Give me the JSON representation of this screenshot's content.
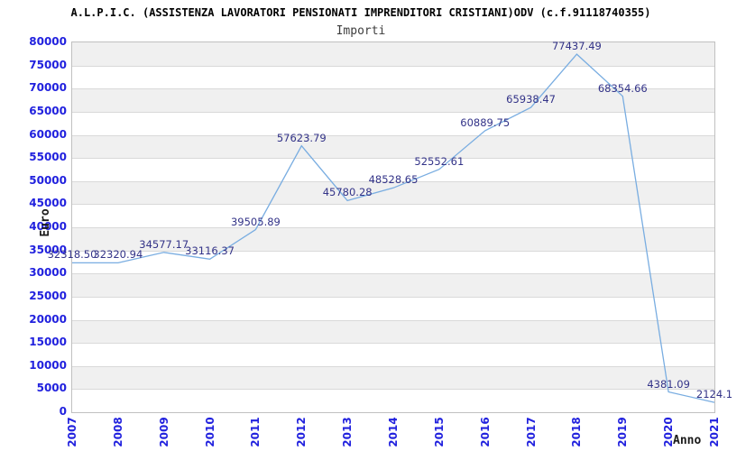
{
  "header": {
    "title": "A.L.P.I.C. (ASSISTENZA LAVORATORI PENSIONATI IMPRENDITORI CRISTIANI)ODV (c.f.91118740355)",
    "subtitle": "Importi"
  },
  "chart_data": {
    "type": "line",
    "title": "Importi",
    "xlabel": "Anno",
    "ylabel": "Euro",
    "categories": [
      "2007",
      "2008",
      "2009",
      "2010",
      "2011",
      "2012",
      "2013",
      "2014",
      "2015",
      "2016",
      "2017",
      "2018",
      "2019",
      "2020",
      "2021"
    ],
    "values": [
      32318.5,
      32320.94,
      34577.17,
      33116.37,
      39505.89,
      57623.79,
      45780.28,
      48528.65,
      52552.61,
      60889.75,
      65938.47,
      77437.49,
      68354.66,
      4381.09,
      2124.1
    ],
    "point_labels": [
      "32318.50",
      "32320.94",
      "34577.17",
      "33116.37",
      "39505.89",
      "57623.79",
      "45780.28",
      "48528.65",
      "52552.61",
      "60889.75",
      "65938.47",
      "77437.49",
      "68354.66",
      "4381.09",
      "2124.1"
    ],
    "ylim": [
      0,
      80000
    ],
    "ytick_step": 5000,
    "grid": true,
    "legend_position": "none",
    "note": "point label for 2021 is clipped at the right image edge",
    "colors": {
      "line": "#79ade1",
      "tick_labels": "#2121de",
      "point_labels": "#333388",
      "band": "#f0f0f0",
      "gridline": "#d9d9d9",
      "plot_border": "#c0c0c0",
      "title": "#000000",
      "subtitle": "#3d3d3d",
      "axis_titles": "#1a1a1a"
    }
  }
}
